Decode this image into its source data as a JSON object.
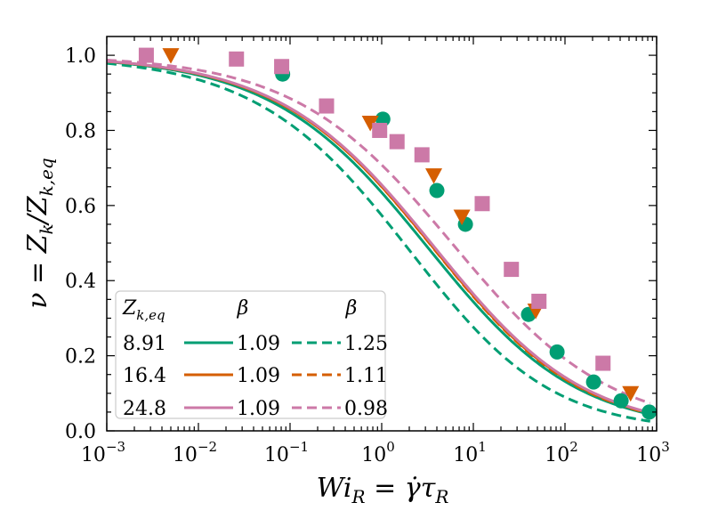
{
  "chart_data": {
    "type": "scatter",
    "xlabel": "Wi_R = γ̇τ_R",
    "ylabel": "ν = Z_k/Z_{k,eq}",
    "xscale": "log",
    "xlim": [
      0.001,
      1000
    ],
    "ylim": [
      0.0,
      1.05
    ],
    "x_ticks": [
      {
        "value": 0.001,
        "base": "10",
        "exp": "−3"
      },
      {
        "value": 0.01,
        "base": "10",
        "exp": "−2"
      },
      {
        "value": 0.1,
        "base": "10",
        "exp": "−1"
      },
      {
        "value": 1,
        "base": "10",
        "exp": "0"
      },
      {
        "value": 10,
        "base": "10",
        "exp": "1"
      },
      {
        "value": 100,
        "base": "10",
        "exp": "2"
      },
      {
        "value": 1000,
        "base": "10",
        "exp": "3"
      }
    ],
    "y_ticks": [
      {
        "value": 0.0,
        "label": "0.0"
      },
      {
        "value": 0.2,
        "label": "0.2"
      },
      {
        "value": 0.4,
        "label": "0.4"
      },
      {
        "value": 0.6,
        "label": "0.6"
      },
      {
        "value": 0.8,
        "label": "0.8"
      },
      {
        "value": 1.0,
        "label": "1.0"
      }
    ],
    "series": [
      {
        "name": "8.91",
        "color": "#009E73",
        "marker": "circle",
        "points": [
          [
            0.083,
            0.95
          ],
          [
            1.03,
            0.83
          ],
          [
            4.0,
            0.64
          ],
          [
            8.2,
            0.55
          ],
          [
            40,
            0.31
          ],
          [
            82,
            0.21
          ],
          [
            205,
            0.13
          ],
          [
            410,
            0.08
          ],
          [
            830,
            0.05
          ]
        ]
      },
      {
        "name": "16.4",
        "color": "#D55E00",
        "marker": "triangle-down",
        "points": [
          [
            0.005,
            1.0
          ],
          [
            0.75,
            0.82
          ],
          [
            3.7,
            0.68
          ],
          [
            7.5,
            0.57
          ],
          [
            48,
            0.32
          ],
          [
            520,
            0.1
          ]
        ]
      },
      {
        "name": "24.8",
        "color": "#CC79A7",
        "marker": "square",
        "points": [
          [
            0.0027,
            1.0
          ],
          [
            0.026,
            0.99
          ],
          [
            0.081,
            0.97
          ],
          [
            0.25,
            0.865
          ],
          [
            0.95,
            0.8
          ],
          [
            1.47,
            0.77
          ],
          [
            2.75,
            0.735
          ],
          [
            12.5,
            0.605
          ],
          [
            26,
            0.43
          ],
          [
            52,
            0.345
          ],
          [
            260,
            0.18
          ]
        ]
      }
    ],
    "fits": [
      {
        "series": "8.91",
        "style": "solid",
        "beta": 1.09,
        "beta_label": "1.09",
        "center": 4.2
      },
      {
        "series": "8.91",
        "style": "dashed",
        "beta": 1.25,
        "beta_label": "1.25",
        "center": 3.6
      },
      {
        "series": "16.4",
        "style": "solid",
        "beta": 1.09,
        "beta_label": "1.09",
        "center": 4.8
      },
      {
        "series": "16.4",
        "style": "dashed",
        "beta": 1.11,
        "beta_label": "1.11",
        "center": 5.0
      },
      {
        "series": "24.8",
        "style": "solid",
        "beta": 1.09,
        "beta_label": "1.09",
        "center": 5.0
      },
      {
        "series": "24.8",
        "style": "dashed",
        "beta": 0.98,
        "beta_label": "0.98",
        "center": 6.3
      }
    ],
    "legend": {
      "placement": "lower-left",
      "header_zk": "Z_{k,eq}",
      "header_beta_solid": "β",
      "header_beta_dashed": "β"
    }
  }
}
